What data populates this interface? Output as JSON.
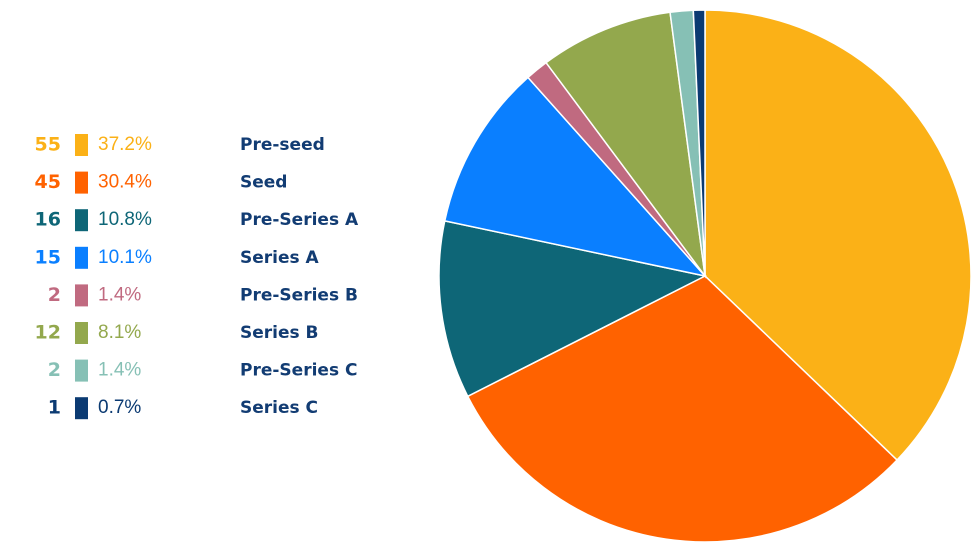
{
  "chart_data": {
    "type": "pie",
    "categories": [
      "Pre-seed",
      "Seed",
      "Pre-Series A",
      "Series A",
      "Pre-Series B",
      "Series B",
      "Pre-Series C",
      "Series C"
    ],
    "counts": [
      55,
      45,
      16,
      15,
      2,
      12,
      2,
      1
    ],
    "values": [
      37.2,
      30.4,
      10.8,
      10.1,
      1.4,
      8.1,
      1.4,
      0.7
    ],
    "value_labels": [
      "37.2%",
      "30.4%",
      "10.8%",
      "10.1%",
      "1.4%",
      "8.1%",
      "1.4%",
      "0.7%"
    ],
    "colors": [
      "#fbb117",
      "#ff6200",
      "#0e6677",
      "#0a7fff",
      "#c06a80",
      "#93a84d",
      "#86c0b5",
      "#0b3a72"
    ]
  }
}
